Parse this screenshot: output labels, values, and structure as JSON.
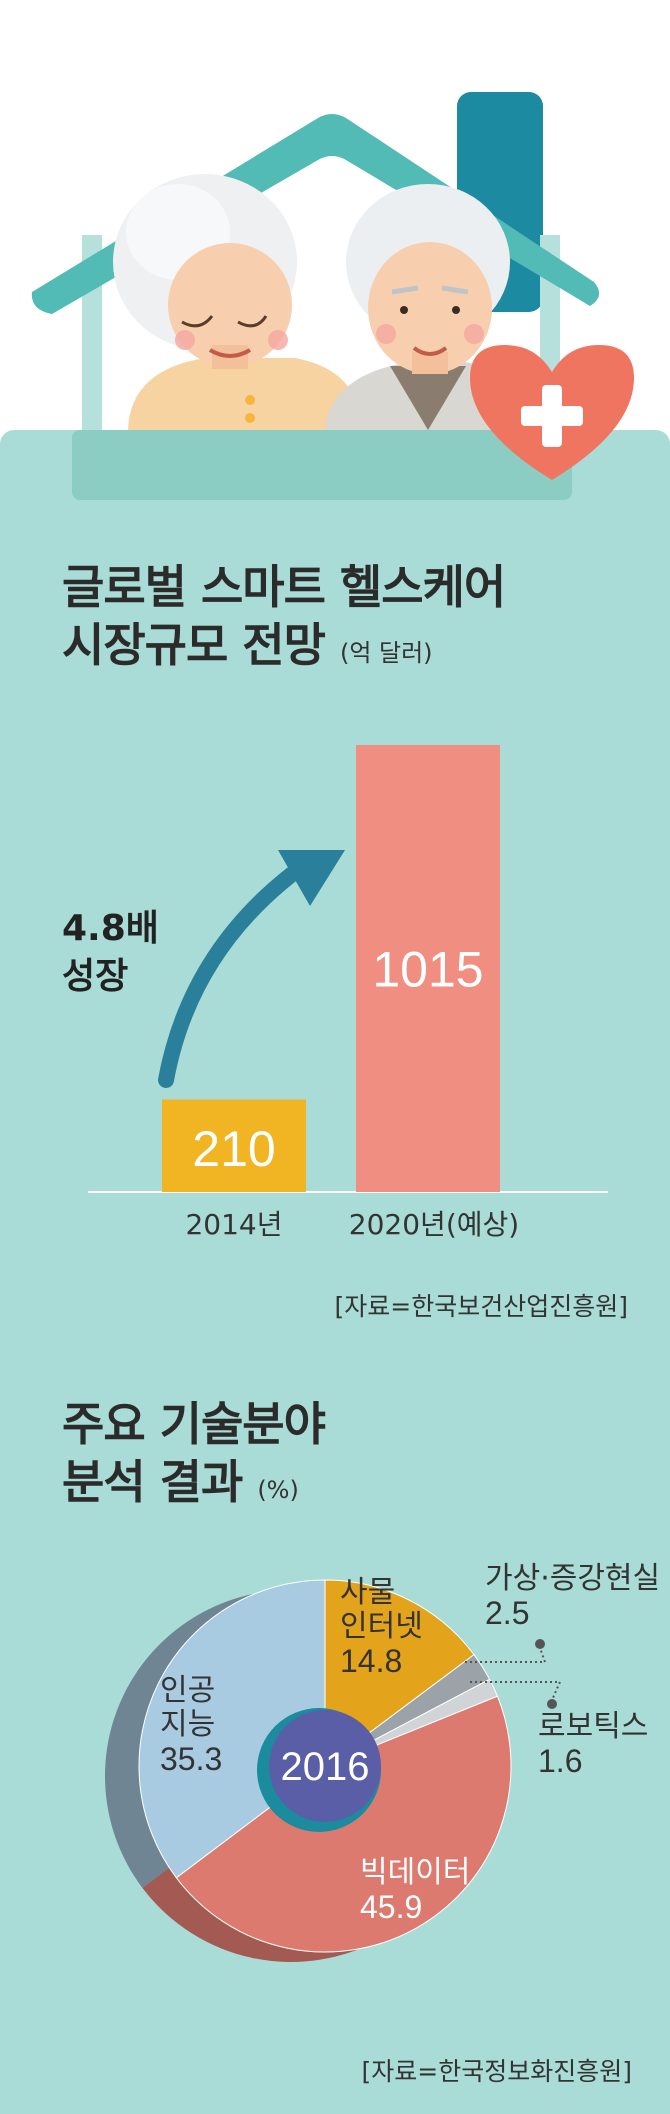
{
  "title1_line1": "글로벌 스마트 헬스케어",
  "title1_line2": "시장규모 전망",
  "title1_unit": "(억 달러)",
  "growth_line1": "4.8배",
  "growth_line2": "성장",
  "source1": "[자료=한국보건산업진흥원]",
  "title2_line1": "주요 기술분야",
  "title2_line2": "분석 결과",
  "title2_unit": "(%)",
  "source2": "[자료=한국정보화진흥원]",
  "colors": {
    "panel": "#a9dcd6",
    "bar2014": "#f1b422",
    "bar2020": "#f08e82",
    "ai": "#a9cbe2",
    "iot": "#e3a41c",
    "vr": "#9ba3a8",
    "robotics": "#d0d4d6",
    "bigdata": "#dc7a70",
    "center": "#5a5ea6"
  },
  "chart_data": [
    {
      "type": "bar",
      "categories": [
        "2014년",
        "2020년(예상)"
      ],
      "values": [
        210,
        1015
      ],
      "value_labels": [
        "210",
        "1015"
      ],
      "ylim": [
        0,
        1015
      ]
    },
    {
      "type": "pie",
      "center_label": "2016",
      "slices": [
        {
          "label": "인공지능",
          "label_lines": [
            "인공",
            "지능"
          ],
          "value": 35.3,
          "value_label": "35.3"
        },
        {
          "label": "사물인터넷",
          "label_lines": [
            "사물",
            "인터넷"
          ],
          "value": 14.8,
          "value_label": "14.8"
        },
        {
          "label": "가상·증강현실",
          "label_lines": [
            "가상·증강현실"
          ],
          "value": 2.5,
          "value_label": "2.5"
        },
        {
          "label": "로보틱스",
          "label_lines": [
            "로보틱스"
          ],
          "value": 1.6,
          "value_label": "1.6"
        },
        {
          "label": "빅데이터",
          "label_lines": [
            "빅데이터"
          ],
          "value": 45.9,
          "value_label": "45.9"
        }
      ]
    }
  ]
}
